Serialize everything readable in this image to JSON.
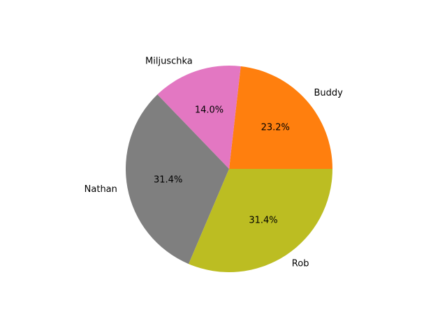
{
  "chart_data": {
    "type": "pie",
    "title": "",
    "start_angle_deg": 0,
    "direction": "counterclockwise",
    "slices": [
      {
        "label": "Buddy",
        "value": 23.2,
        "pct_label": "23.2%",
        "color": "#ff7f0e"
      },
      {
        "label": "Miljuschka",
        "value": 14.0,
        "pct_label": "14.0%",
        "color": "#e377c2"
      },
      {
        "label": "Nathan",
        "value": 31.4,
        "pct_label": "31.4%",
        "color": "#7f7f7f"
      },
      {
        "label": "Rob",
        "value": 31.4,
        "pct_label": "31.4%",
        "color": "#bcbd22"
      }
    ]
  }
}
